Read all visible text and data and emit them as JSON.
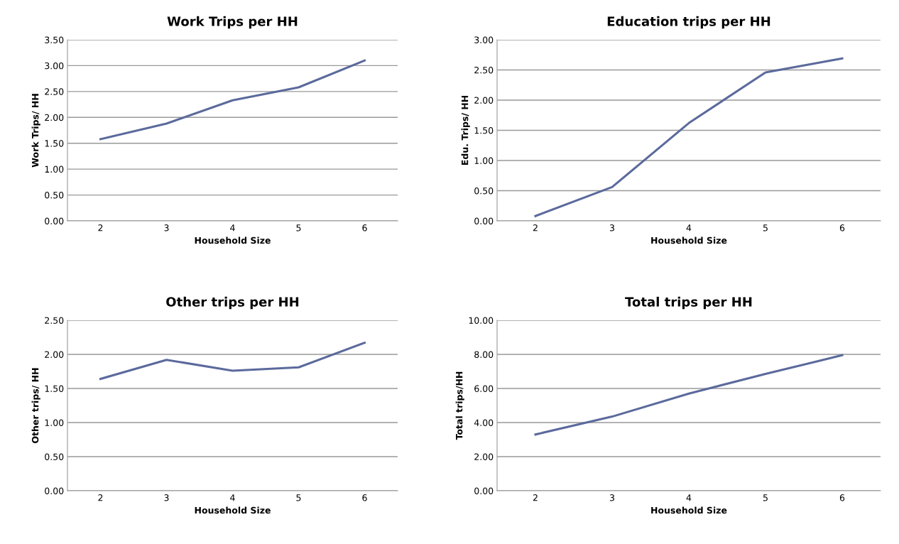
{
  "chart_data": [
    {
      "type": "line",
      "title": "Work Trips per HH",
      "xlabel": "Household Size",
      "ylabel": "Work Trips/ HH",
      "categories": [
        "2",
        "3",
        "4",
        "5",
        "6"
      ],
      "series": [
        {
          "color": "#5b6a9c",
          "values": [
            1.58,
            1.88,
            2.33,
            2.58,
            3.1
          ]
        }
      ],
      "ylim": [
        0,
        3.5
      ],
      "yticks": [
        {
          "value": 0,
          "label": "0.00"
        },
        {
          "value": 0.5,
          "label": "0.50"
        },
        {
          "value": 1,
          "label": "1.00"
        },
        {
          "value": 1.5,
          "label": "1.50"
        },
        {
          "value": 2,
          "label": "2.00"
        },
        {
          "value": 2.5,
          "label": "2.50"
        },
        {
          "value": 3,
          "label": "3.00"
        },
        {
          "value": 3.5,
          "label": "3.50"
        }
      ],
      "grid": "y",
      "marker": "none",
      "line_style": "solid"
    },
    {
      "type": "line",
      "title": "Education trips per HH",
      "xlabel": "Household Size",
      "ylabel": "Edu. Trips/ HH",
      "categories": [
        "2",
        "3",
        "4",
        "5",
        "6"
      ],
      "series": [
        {
          "color": "#5b6a9c",
          "values": [
            0.08,
            0.56,
            1.62,
            2.46,
            2.69
          ]
        }
      ],
      "ylim": [
        0,
        3
      ],
      "yticks": [
        {
          "value": 0,
          "label": "0.00"
        },
        {
          "value": 0.5,
          "label": "0.50"
        },
        {
          "value": 1,
          "label": "1.00"
        },
        {
          "value": 1.5,
          "label": "1.50"
        },
        {
          "value": 2,
          "label": "2.00"
        },
        {
          "value": 2.5,
          "label": "2.50"
        },
        {
          "value": 3,
          "label": "3.00"
        }
      ],
      "grid": "y",
      "marker": "none",
      "line_style": "solid"
    },
    {
      "type": "line",
      "title": "Other trips per HH",
      "xlabel": "Household Size",
      "ylabel": "Other trips/ HH",
      "categories": [
        "2",
        "3",
        "4",
        "5",
        "6"
      ],
      "series": [
        {
          "color": "#5b6a9c",
          "values": [
            1.64,
            1.92,
            1.76,
            1.81,
            2.17
          ]
        }
      ],
      "ylim": [
        0,
        2.5
      ],
      "yticks": [
        {
          "value": 0,
          "label": "0.00"
        },
        {
          "value": 0.5,
          "label": "0.50"
        },
        {
          "value": 1,
          "label": "1.00"
        },
        {
          "value": 1.5,
          "label": "1.50"
        },
        {
          "value": 2,
          "label": "2.00"
        },
        {
          "value": 2.5,
          "label": "2.50"
        }
      ],
      "grid": "y",
      "marker": "none",
      "line_style": "solid"
    },
    {
      "type": "line",
      "title": "Total trips per HH",
      "xlabel": "Household Size",
      "ylabel": "Total trips/HH",
      "categories": [
        "2",
        "3",
        "4",
        "5",
        "6"
      ],
      "series": [
        {
          "color": "#5b6a9c",
          "values": [
            3.3,
            4.35,
            5.7,
            6.85,
            7.95
          ]
        }
      ],
      "ylim": [
        0,
        10
      ],
      "yticks": [
        {
          "value": 0,
          "label": "0.00"
        },
        {
          "value": 2,
          "label": "2.00"
        },
        {
          "value": 4,
          "label": "4.00"
        },
        {
          "value": 6,
          "label": "6.00"
        },
        {
          "value": 8,
          "label": "8.00"
        },
        {
          "value": 10,
          "label": "10.00"
        }
      ],
      "grid": "y",
      "marker": "none",
      "line_style": "solid"
    }
  ]
}
